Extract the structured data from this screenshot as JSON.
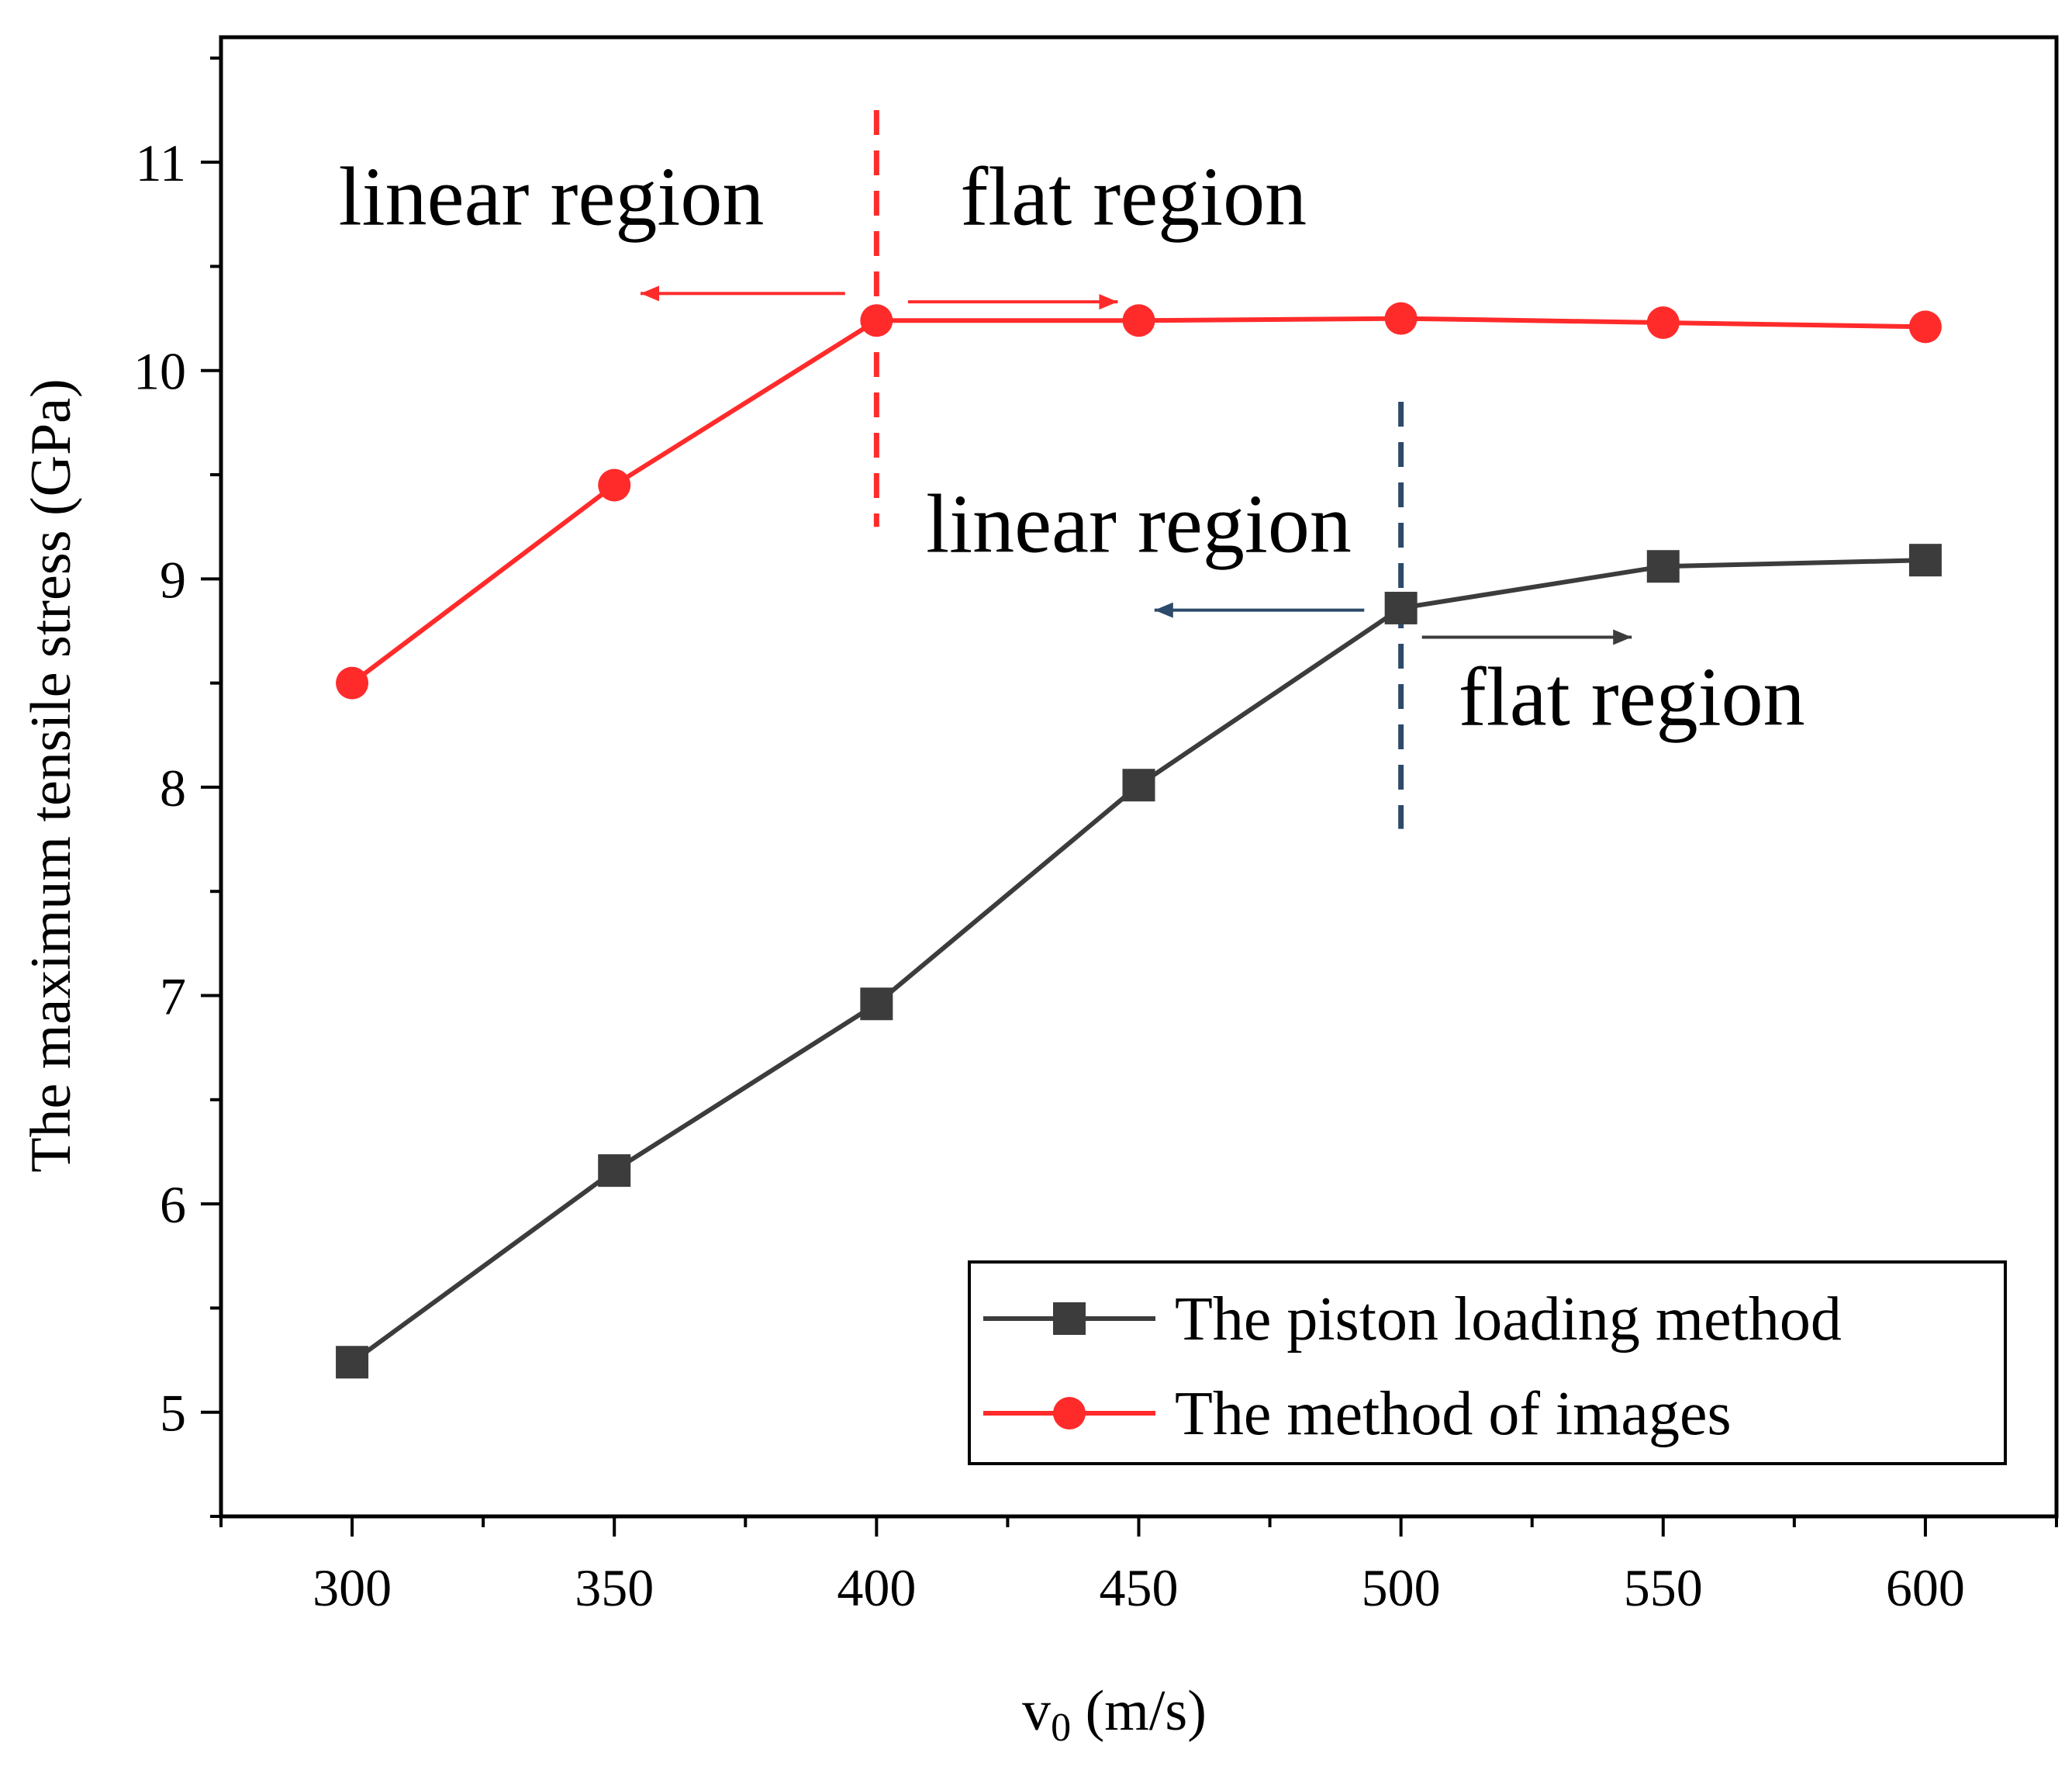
{
  "chart_data": {
    "type": "line",
    "title": "",
    "xlabel_main": "v",
    "xlabel_sub": "0",
    "xlabel_unit": " (m/s)",
    "ylabel": "The maximum tensile stress (GPa)",
    "xlim": [
      275,
      625
    ],
    "ylim": [
      4.5,
      11.6
    ],
    "xticks": [
      300,
      350,
      400,
      450,
      500,
      550,
      600
    ],
    "yticks": [
      5,
      6,
      7,
      8,
      9,
      10,
      11
    ],
    "x": [
      300,
      350,
      400,
      450,
      500,
      550,
      600
    ],
    "series": [
      {
        "name": "The piston loading method",
        "values": [
          5.24,
          6.16,
          6.96,
          8.01,
          8.86,
          9.06,
          9.09
        ],
        "color": "#3c3c3c",
        "marker": "square"
      },
      {
        "name": "The method of images",
        "values": [
          8.5,
          9.45,
          10.24,
          10.24,
          10.25,
          10.23,
          10.21
        ],
        "color": "#ff2b2b",
        "marker": "circle"
      }
    ],
    "annotations": [
      {
        "text": "linear region",
        "color": "#000000",
        "x": 338,
        "y": 10.7,
        "arrow_from": 394,
        "arrow_to": 355,
        "arrow_y": 10.37,
        "arrow_color": "#ff2b2b"
      },
      {
        "text": "flat region",
        "color": "#000000",
        "x": 449,
        "y": 10.7,
        "arrow_from": 406,
        "arrow_to": 446,
        "arrow_y": 10.33,
        "arrow_color": "#ff2b2b"
      },
      {
        "text": "linear region",
        "color": "#000000",
        "x": 450,
        "y": 9.13,
        "arrow_from": 493,
        "arrow_to": 453,
        "arrow_y": 8.85,
        "arrow_color": "#2d4a6b"
      },
      {
        "text": "flat region",
        "color": "#000000",
        "x": 544,
        "y": 8.3,
        "arrow_from": 504,
        "arrow_to": 544,
        "arrow_y": 8.72,
        "arrow_color": "#3c3c3c"
      }
    ],
    "vlines": [
      {
        "x": 400,
        "y_from": 9.25,
        "y_to": 11.25,
        "color": "#ff2b2b"
      },
      {
        "x": 500,
        "y_from": 7.8,
        "y_to": 9.85,
        "color": "#2d4a6b"
      }
    ],
    "legend_position": "bottom-right"
  }
}
